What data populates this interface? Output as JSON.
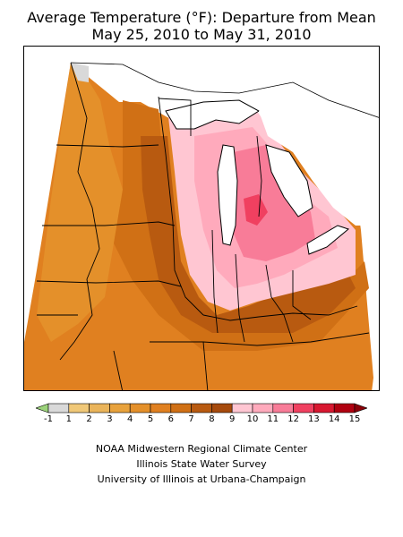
{
  "title": {
    "line1": "Average Temperature (°F): Departure from Mean",
    "line2": "May 25, 2010 to May 31, 2010"
  },
  "legend": {
    "labels": [
      "-1",
      "1",
      "2",
      "3",
      "4",
      "5",
      "6",
      "7",
      "8",
      "9",
      "10",
      "11",
      "12",
      "13",
      "14",
      "15"
    ],
    "colors": [
      "#9bd27a",
      "#d9d9d9",
      "#f0c878",
      "#eab45a",
      "#e8a23c",
      "#e4902a",
      "#e08020",
      "#d07015",
      "#b85a10",
      "#a64a0c",
      "#ffc6d2",
      "#ffaabc",
      "#f87c98",
      "#f04060",
      "#d81830",
      "#b00010",
      "#8a0008"
    ]
  },
  "credits": {
    "line1": "NOAA Midwestern Regional Climate Center",
    "line2": "Illinois State Water Survey",
    "line3": "University of Illinois at Urbana-Champaign"
  }
}
